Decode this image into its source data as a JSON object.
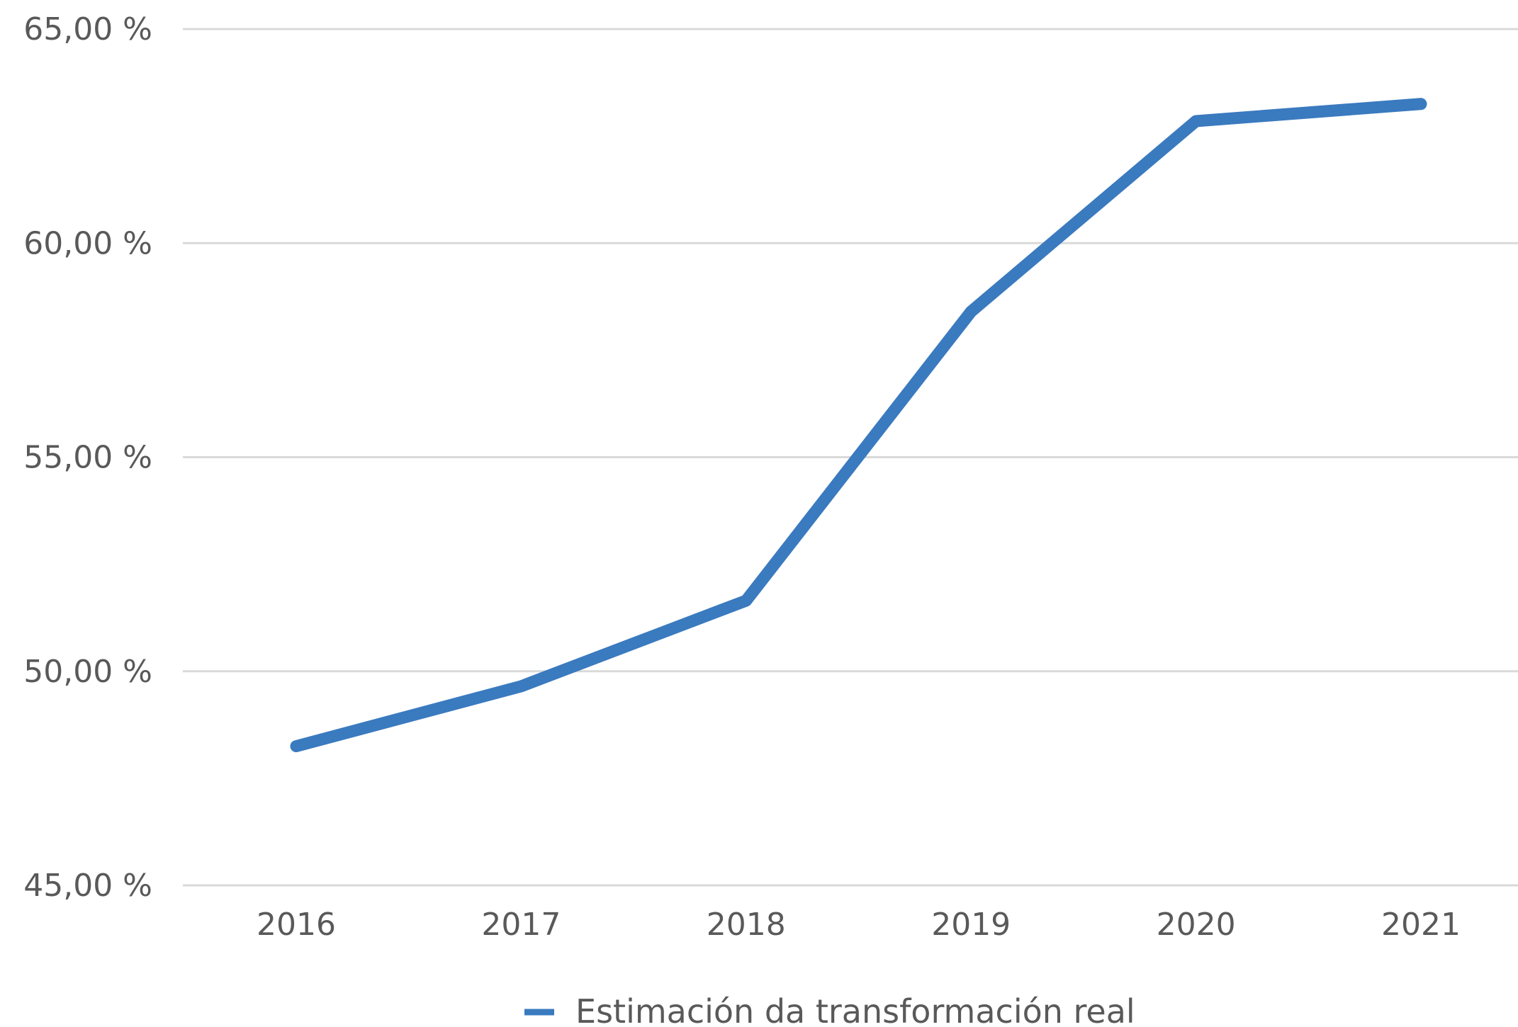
{
  "chart_data": {
    "type": "line",
    "categories": [
      "2016",
      "2017",
      "2018",
      "2019",
      "2020",
      "2021"
    ],
    "series": [
      {
        "name": "Estimación da transformación real",
        "values": [
          48.25,
          49.65,
          51.65,
          58.4,
          62.85,
          63.25
        ],
        "color": "#3a7abf"
      }
    ],
    "yticks": [
      "45,00 %",
      "50,00 %",
      "55,00 %",
      "60,00 %",
      "65,00 %"
    ],
    "ytick_values": [
      45,
      50,
      55,
      60,
      65
    ],
    "ylim": [
      45,
      65
    ],
    "grid": true,
    "legend_position": "bottom",
    "title": "",
    "xlabel": "",
    "ylabel": ""
  },
  "colors": {
    "grid": "#d9d9d9",
    "text": "#595959",
    "line": "#3a7abf"
  }
}
